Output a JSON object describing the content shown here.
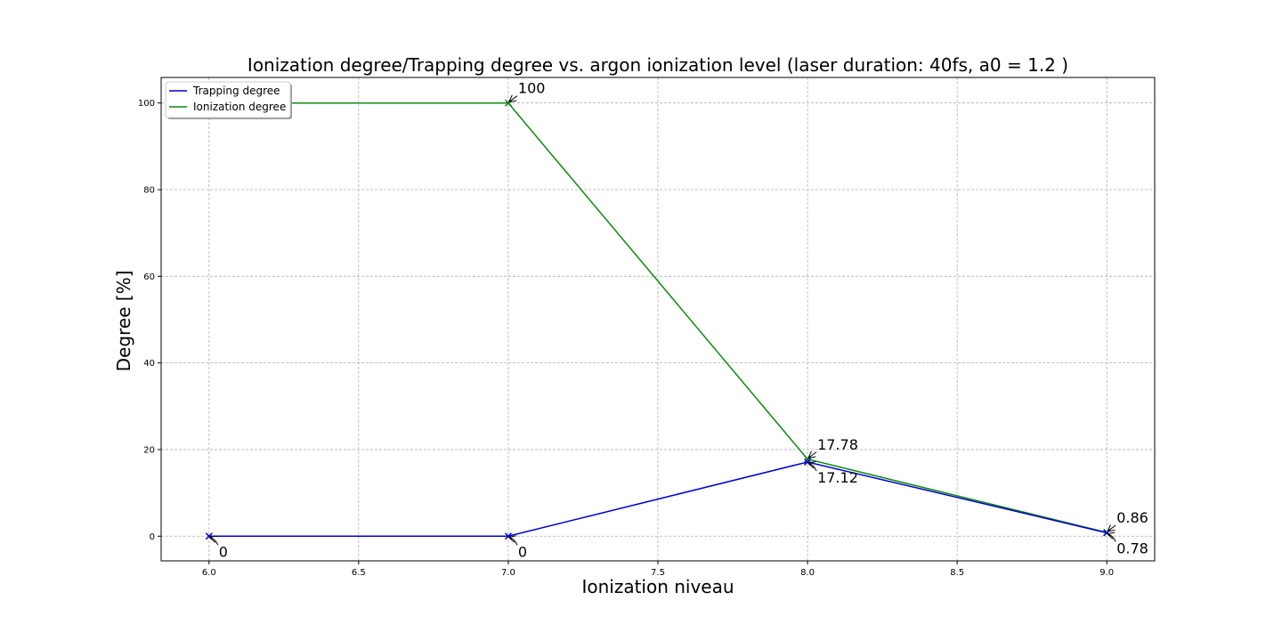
{
  "chart_data": {
    "type": "line",
    "title": "Ionization degree/Trapping degree vs. argon ionization level  (laser duration: 40fs, a0 = 1.2 )",
    "xlabel": "Ionization niveau",
    "ylabel": "Degree [%]",
    "xlim": [
      5.84,
      9.16
    ],
    "ylim": [
      -5.7,
      105.9
    ],
    "xticks": [
      6.0,
      6.5,
      7.0,
      7.5,
      8.0,
      8.5,
      9.0
    ],
    "xtick_labels": [
      "6.0",
      "6.5",
      "7.0",
      "7.5",
      "8.0",
      "8.5",
      "9.0"
    ],
    "yticks": [
      0,
      20,
      40,
      60,
      80,
      100
    ],
    "ytick_labels": [
      "0",
      "20",
      "40",
      "60",
      "80",
      "100"
    ],
    "grid": true,
    "legend_position": "top-left",
    "series": [
      {
        "name": "Trapping degree",
        "color": "#0000cc",
        "marker": "x",
        "x": [
          6,
          7,
          8,
          9
        ],
        "y": [
          0,
          0,
          17.12,
          0.78
        ],
        "labels": [
          "0",
          "0",
          "17.12",
          "0.78"
        ]
      },
      {
        "name": "Ionization degree",
        "color": "#118811",
        "marker": "x",
        "x": [
          6,
          7,
          8,
          9
        ],
        "y": [
          100,
          100,
          17.78,
          0.86
        ],
        "labels": [
          "",
          "100",
          "17.78",
          "0.86"
        ]
      }
    ]
  }
}
